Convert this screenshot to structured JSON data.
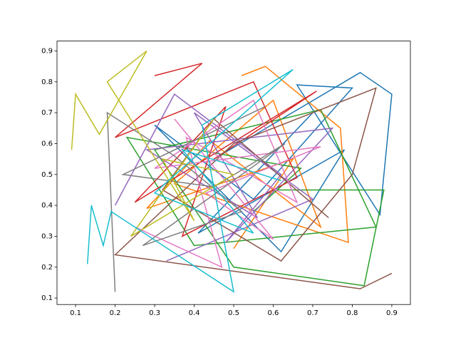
{
  "chart_data": {
    "type": "line",
    "xlim": [
      0.053,
      0.947
    ],
    "ylim": [
      0.079,
      0.932
    ],
    "xticks": [
      0.1,
      0.2,
      0.3,
      0.4,
      0.5,
      0.6,
      0.7,
      0.8,
      0.9
    ],
    "yticks": [
      0.1,
      0.2,
      0.3,
      0.4,
      0.5,
      0.6,
      0.7,
      0.8,
      0.9
    ],
    "series": [
      {
        "color": "#1f77b4",
        "x": [
          0.45,
          0.82,
          0.9,
          0.87,
          0.66,
          0.8,
          0.55,
          0.3,
          0.62,
          0.78,
          0.41,
          0.7
        ],
        "values": [
          0.55,
          0.83,
          0.76,
          0.37,
          0.79,
          0.78,
          0.42,
          0.66,
          0.25,
          0.58,
          0.31,
          0.7
        ]
      },
      {
        "color": "#ff7f0e",
        "x": [
          0.52,
          0.58,
          0.77,
          0.79,
          0.35,
          0.6,
          0.72,
          0.44,
          0.28,
          0.65,
          0.5
        ],
        "values": [
          0.82,
          0.85,
          0.65,
          0.28,
          0.47,
          0.74,
          0.33,
          0.61,
          0.39,
          0.55,
          0.26
        ]
      },
      {
        "color": "#2ca02c",
        "x": [
          0.6,
          0.88,
          0.83,
          0.5,
          0.3,
          0.72,
          0.86,
          0.4,
          0.23,
          0.67,
          0.55
        ],
        "values": [
          0.45,
          0.45,
          0.14,
          0.2,
          0.58,
          0.71,
          0.33,
          0.27,
          0.62,
          0.52,
          0.38
        ]
      },
      {
        "color": "#d62728",
        "x": [
          0.3,
          0.42,
          0.2,
          0.55,
          0.66,
          0.37,
          0.48,
          0.25,
          0.71,
          0.45
        ],
        "values": [
          0.82,
          0.86,
          0.62,
          0.8,
          0.49,
          0.3,
          0.72,
          0.41,
          0.77,
          0.55
        ]
      },
      {
        "color": "#9467bd",
        "x": [
          0.2,
          0.35,
          0.62,
          0.48,
          0.75,
          0.28,
          0.56,
          0.4,
          0.7,
          0.33
        ],
        "values": [
          0.4,
          0.76,
          0.5,
          0.28,
          0.65,
          0.58,
          0.36,
          0.7,
          0.42,
          0.22
        ]
      },
      {
        "color": "#8c564b",
        "x": [
          0.9,
          0.82,
          0.2,
          0.5,
          0.86,
          0.8,
          0.62,
          0.32,
          0.45,
          0.74
        ],
        "values": [
          0.18,
          0.13,
          0.24,
          0.6,
          0.78,
          0.5,
          0.22,
          0.45,
          0.68,
          0.36
        ]
      },
      {
        "color": "#e377c2",
        "x": [
          0.25,
          0.47,
          0.38,
          0.66,
          0.55,
          0.3,
          0.72,
          0.43,
          0.6,
          0.35
        ],
        "values": [
          0.33,
          0.2,
          0.62,
          0.41,
          0.74,
          0.52,
          0.59,
          0.44,
          0.29,
          0.68
        ]
      },
      {
        "color": "#7f7f7f",
        "x": [
          0.2,
          0.18,
          0.35,
          0.52,
          0.27,
          0.63,
          0.45,
          0.22,
          0.58
        ],
        "values": [
          0.12,
          0.7,
          0.56,
          0.38,
          0.27,
          0.6,
          0.46,
          0.5,
          0.72
        ]
      },
      {
        "color": "#bcbd22",
        "x": [
          0.09,
          0.1,
          0.16,
          0.28,
          0.18,
          0.4,
          0.32,
          0.5,
          0.24,
          0.45
        ],
        "values": [
          0.58,
          0.76,
          0.63,
          0.9,
          0.8,
          0.35,
          0.55,
          0.5,
          0.3,
          0.68
        ]
      },
      {
        "color": "#17becf",
        "x": [
          0.13,
          0.14,
          0.17,
          0.19,
          0.5,
          0.42,
          0.65,
          0.3,
          0.55,
          0.37,
          0.62
        ],
        "values": [
          0.21,
          0.4,
          0.27,
          0.38,
          0.12,
          0.66,
          0.84,
          0.44,
          0.31,
          0.58,
          0.48
        ]
      }
    ]
  }
}
